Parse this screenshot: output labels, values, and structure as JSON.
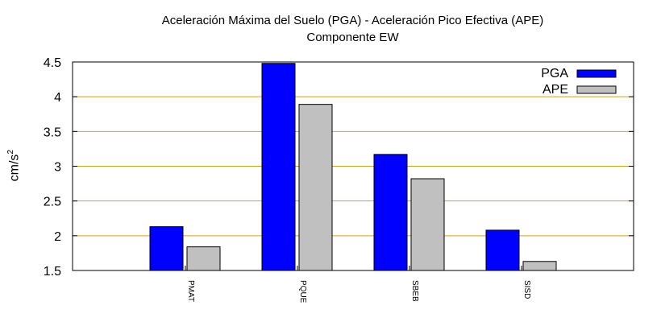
{
  "chart_data": {
    "type": "bar",
    "title": "Aceleración Máxima del Suelo (PGA) -  Aceleración Pico Efectiva (APE)",
    "subtitle": "Componente EW",
    "ylabel": "cm/s",
    "ylabel_superscript": "2",
    "xlabel": "",
    "categories": [
      "PMAT",
      "PQUE",
      "SBEB",
      "SISD"
    ],
    "series": [
      {
        "name": "PGA",
        "color": "#0000ff",
        "values": [
          2.13,
          4.48,
          3.17,
          2.08
        ]
      },
      {
        "name": "APE",
        "color": "#c0c0c0",
        "values": [
          1.84,
          3.89,
          2.82,
          1.63
        ]
      }
    ],
    "ylim": [
      1.5,
      4.5
    ],
    "yticks": [
      "1.5",
      "2",
      "2.5",
      "3",
      "3.5",
      "4",
      "4.5"
    ],
    "grid": true,
    "grid_color": "#d4a017",
    "legend_position": "top-right"
  }
}
